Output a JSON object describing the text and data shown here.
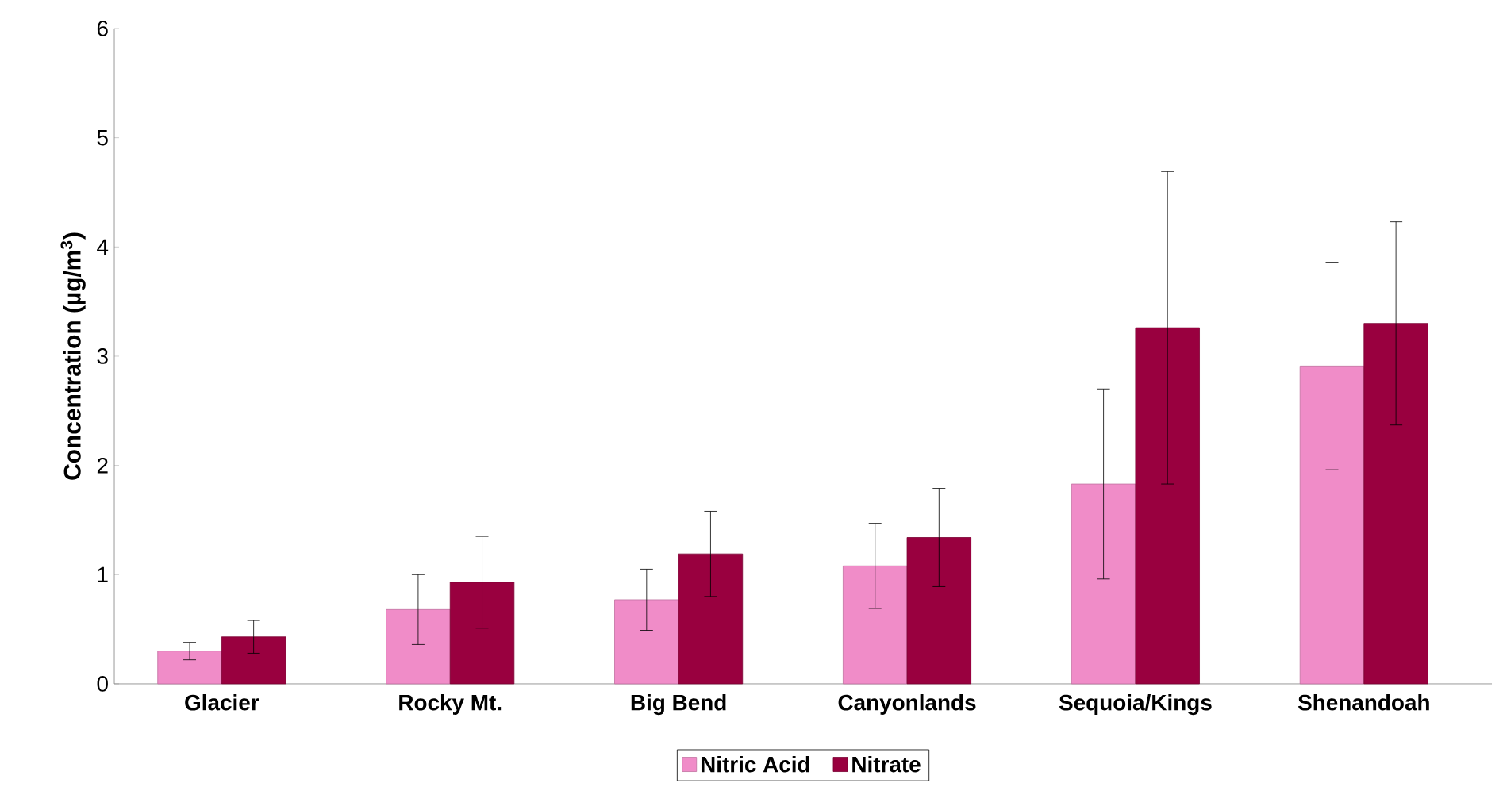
{
  "chart_data": {
    "type": "bar",
    "ylabel": "Concentration (µg/m$^{3}$)",
    "categories": [
      "Glacier",
      "Rocky Mt.",
      "Big Bend",
      "Canyonlands",
      "Sequoia/Kings",
      "Shenandoah"
    ],
    "series": [
      {
        "name": "Nitric Acid",
        "color": "#f08cc8",
        "values": [
          0.3,
          0.68,
          0.77,
          1.08,
          1.83,
          2.91
        ],
        "errors": [
          0.08,
          0.32,
          0.28,
          0.39,
          0.87,
          0.95
        ]
      },
      {
        "name": "Nitrate",
        "color": "#99003f",
        "values": [
          0.43,
          0.93,
          1.19,
          1.34,
          3.26,
          3.3
        ],
        "errors": [
          0.15,
          0.42,
          0.39,
          0.45,
          1.43,
          0.93
        ]
      }
    ],
    "ylim": [
      0,
      6
    ],
    "yticks": [
      0,
      1,
      2,
      3,
      4,
      5,
      6
    ],
    "grid": false,
    "legend": "bottom"
  }
}
